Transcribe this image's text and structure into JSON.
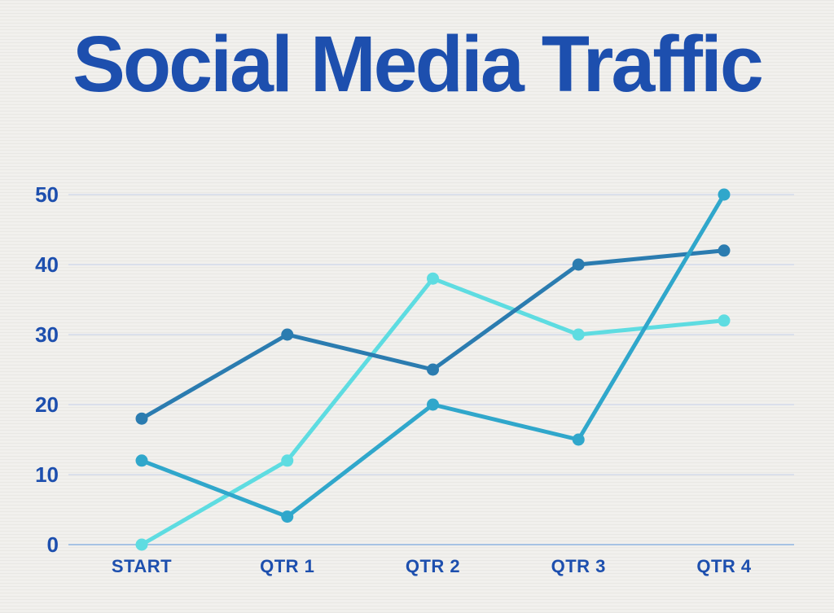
{
  "title": "Social Media Traffic",
  "chart_data": {
    "type": "line",
    "title": "Social Media Traffic",
    "categories": [
      "START",
      "QTR 1",
      "QTR 2",
      "QTR 3",
      "QTR 4"
    ],
    "series": [
      {
        "name": "dark-blue-line",
        "color": "#2b7cb0",
        "values": [
          18,
          30,
          25,
          40,
          42
        ]
      },
      {
        "name": "teal-line",
        "color": "#30a7cb",
        "values": [
          12,
          4,
          20,
          15,
          50
        ]
      },
      {
        "name": "light-cyan-line",
        "color": "#5edce1",
        "values": [
          0,
          12,
          38,
          30,
          32
        ]
      }
    ],
    "xlabel": "",
    "ylabel": "",
    "yticks": [
      0,
      10,
      20,
      30,
      40,
      50
    ],
    "ylim": [
      0,
      50
    ],
    "grid": true,
    "legend_position": "none",
    "colors": {
      "title_text": "#1d4fae",
      "tick_label_text": "#1d4fae",
      "gridline": "#d4dbeb",
      "zero_axis_line": "#a6c2e4",
      "background": "#f1f0ed"
    }
  }
}
